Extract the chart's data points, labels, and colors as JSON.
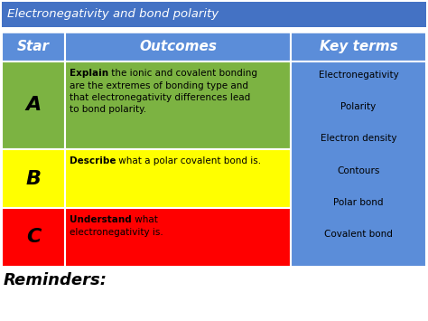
{
  "title": "Electronegativity and bond polarity",
  "title_bg": "#4472C4",
  "title_color": "#FFFFFF",
  "header_bg": "#5B8DD9",
  "header_color": "#FFFFFF",
  "col_headers": [
    "Star",
    "Outcomes",
    "Key terms"
  ],
  "rows": [
    {
      "star": "A",
      "star_bg": "#7CB342",
      "outcome_bg": "#7CB342",
      "outcome_bold": "Explain",
      "outcome_rest": " the ionic and covalent bonding\nare the extremes of bonding type and\nthat electronegativity differences lead\nto bond polarity."
    },
    {
      "star": "B",
      "star_bg": "#FFFF00",
      "outcome_bg": "#FFFF00",
      "outcome_bold": "Describe",
      "outcome_rest": " what a polar covalent bond is."
    },
    {
      "star": "C",
      "star_bg": "#FF0000",
      "outcome_bg": "#FF0000",
      "outcome_bold": "Understand",
      "outcome_rest": " what\nelectronegativity is."
    }
  ],
  "key_terms": [
    "Electronegativity",
    "Polarity",
    "Electron density",
    "Contours",
    "Polar bond",
    "Covalent bond"
  ],
  "key_terms_bg": "#5B8DD9",
  "key_terms_color": "#000000",
  "reminders_text": "Reminders:",
  "bg_color": "#FFFFFF",
  "fig_width": 4.74,
  "fig_height": 3.55
}
